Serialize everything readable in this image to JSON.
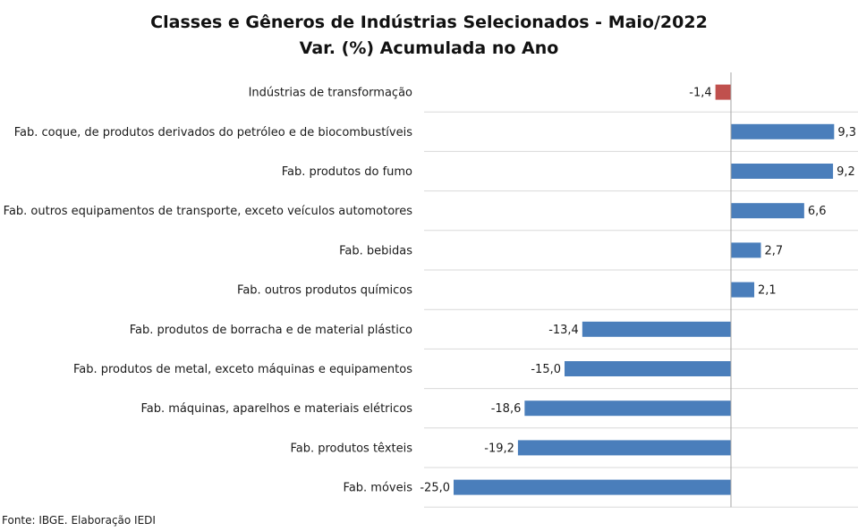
{
  "colors": {
    "positive": "#4a7ebb",
    "negative": "#c0504d",
    "grid": "#d9d9d9",
    "axis": "#a6a6a6"
  },
  "chart_data": {
    "type": "bar",
    "orientation": "horizontal",
    "title": "Classes e Gêneros de Indústrias Selecionados - Maio/2022",
    "subtitle": "Var. (%) Acumulada no Ano",
    "categories": [
      "Indústrias de transformação",
      "Fab. coque, de produtos derivados do petróleo e de biocombustíveis",
      "Fab. produtos do fumo",
      "Fab. outros equipamentos de transporte, exceto veículos automotores",
      "Fab. bebidas",
      "Fab. outros produtos químicos",
      "Fab. produtos de borracha e de material plástico",
      "Fab. produtos de metal, exceto máquinas e equipamentos",
      "Fab. máquinas, aparelhos e materiais elétricos",
      "Fab. produtos têxteis",
      "Fab. móveis"
    ],
    "values": [
      -1.4,
      9.3,
      9.2,
      6.6,
      2.7,
      2.1,
      -13.4,
      -15.0,
      -18.6,
      -19.2,
      -25.0
    ],
    "labels": [
      "-1,4",
      "9,3",
      "9,2",
      "6,6",
      "2,7",
      "2,1",
      "-13,4",
      "-15,0",
      "-18,6",
      "-19,2",
      "-25,0"
    ],
    "grid": true
  },
  "source": "Fonte: IBGE. Elaboração IEDI"
}
